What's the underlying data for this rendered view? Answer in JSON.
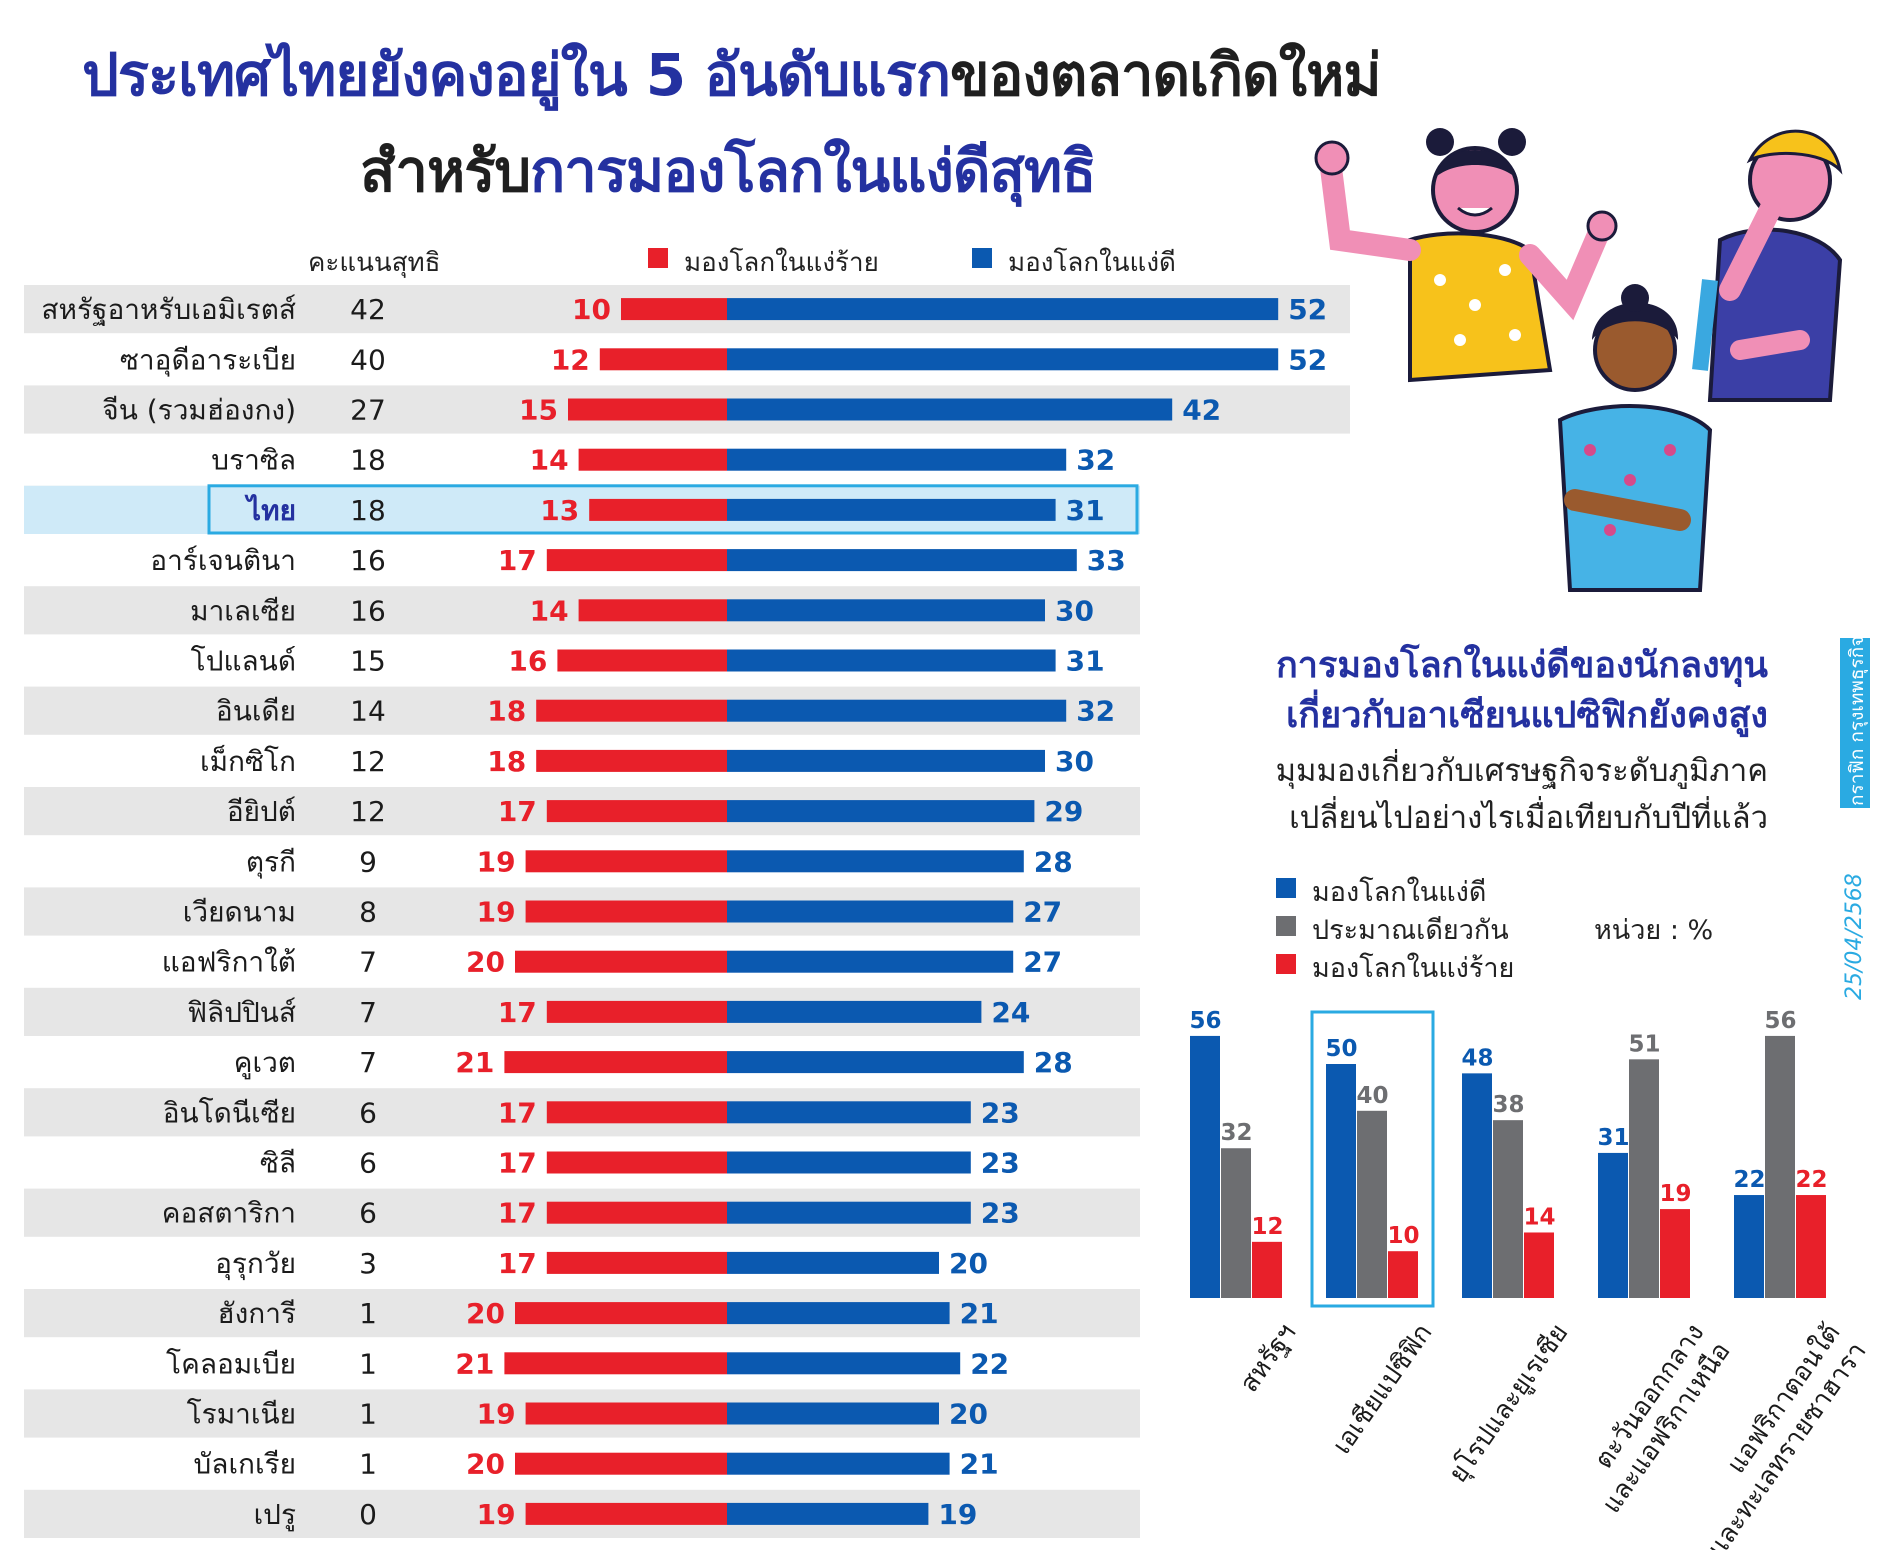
{
  "title": {
    "line1_blue": "ประเทศไทยยังคงอยู่ใน 5 อันดับแรก",
    "line1_dark": "ของตลาดเกิดใหม่",
    "line2_dark": "สำหรับ",
    "line2_blue": "การมองโลกในแง่ดีสุทธิ"
  },
  "chart_data": [
    {
      "type": "bar",
      "orientation": "horizontal-diverging",
      "net_header": "คะแนนสุทธิ",
      "highlight": "ไทย",
      "colors": {
        "pessimistic": "#e8202a",
        "optimistic": "#0b59b0",
        "highlight_border": "#2aaae2"
      },
      "series": [
        {
          "name": "มองโลกในแง่ร้าย"
        },
        {
          "name": "มองโลกในแง่ดี"
        }
      ],
      "rows": [
        {
          "country": "สหรัฐอาหรับเอมิเรตส์",
          "net": 42,
          "pess": 10,
          "opt": 52
        },
        {
          "country": "ซาอุดีอาระเบีย",
          "net": 40,
          "pess": 12,
          "opt": 52
        },
        {
          "country": "จีน (รวมฮ่องกง)",
          "net": 27,
          "pess": 15,
          "opt": 42
        },
        {
          "country": "บราซิล",
          "net": 18,
          "pess": 14,
          "opt": 32
        },
        {
          "country": "ไทย",
          "net": 18,
          "pess": 13,
          "opt": 31
        },
        {
          "country": "อาร์เจนตินา",
          "net": 16,
          "pess": 17,
          "opt": 33
        },
        {
          "country": "มาเลเซีย",
          "net": 16,
          "pess": 14,
          "opt": 30
        },
        {
          "country": "โปแลนด์",
          "net": 15,
          "pess": 16,
          "opt": 31
        },
        {
          "country": "อินเดีย",
          "net": 14,
          "pess": 18,
          "opt": 32
        },
        {
          "country": "เม็กซิโก",
          "net": 12,
          "pess": 18,
          "opt": 30
        },
        {
          "country": "อียิปต์",
          "net": 12,
          "pess": 17,
          "opt": 29
        },
        {
          "country": "ตุรกี",
          "net": 9,
          "pess": 19,
          "opt": 28
        },
        {
          "country": "เวียดนาม",
          "net": 8,
          "pess": 19,
          "opt": 27
        },
        {
          "country": "แอฟริกาใต้",
          "net": 7,
          "pess": 20,
          "opt": 27
        },
        {
          "country": "ฟิลิปปินส์",
          "net": 7,
          "pess": 17,
          "opt": 24
        },
        {
          "country": "คูเวต",
          "net": 7,
          "pess": 21,
          "opt": 28
        },
        {
          "country": "อินโดนีเซีย",
          "net": 6,
          "pess": 17,
          "opt": 23
        },
        {
          "country": "ซิลี",
          "net": 6,
          "pess": 17,
          "opt": 23
        },
        {
          "country": "คอสตาริกา",
          "net": 6,
          "pess": 17,
          "opt": 23
        },
        {
          "country": "อุรุกวัย",
          "net": 3,
          "pess": 17,
          "opt": 20
        },
        {
          "country": "ฮังการี",
          "net": 1,
          "pess": 20,
          "opt": 21
        },
        {
          "country": "โคลอมเบีย",
          "net": 1,
          "pess": 21,
          "opt": 22
        },
        {
          "country": "โรมาเนีย",
          "net": 1,
          "pess": 19,
          "opt": 20
        },
        {
          "country": "บัลเกเรีย",
          "net": 1,
          "pess": 20,
          "opt": 21
        },
        {
          "country": "เปรู",
          "net": 0,
          "pess": 19,
          "opt": 19
        }
      ]
    },
    {
      "type": "bar",
      "title": "การมองโลกในแง่ดีของนักลงทุน",
      "title2": "เกี่ยวกับอาเซียนแปซิฟิกยังคงสูง",
      "subtitle": "มุมมองเกี่ยวกับเศรษฐกิจระดับภูมิภาค",
      "subtitle2": "เปลี่ยนไปอย่างไรเมื่อเทียบกับปีที่แล้ว",
      "unit": "หน่วย : %",
      "highlight": "เอเชียแปซิฟิก",
      "categories": [
        [
          "สหรัฐฯ"
        ],
        [
          "เอเชียแปซิฟิก"
        ],
        [
          "ยุโรปและยูเรเซีย"
        ],
        [
          "ตะวันออกกลาง",
          "และแอฟริกาเหนือ"
        ],
        [
          "แอฟริกาตอนใต้",
          "และทะเลทรายซาฮารา"
        ]
      ],
      "series": [
        {
          "name": "มองโลกในแง่ดี",
          "color": "#0b59b0",
          "values": [
            56,
            50,
            48,
            31,
            22
          ]
        },
        {
          "name": "ประมาณเดียวกัน",
          "color": "#6d6e71",
          "values": [
            32,
            40,
            38,
            51,
            56
          ]
        },
        {
          "name": "มองโลกในแง่ร้าย",
          "color": "#e8202a",
          "values": [
            12,
            10,
            14,
            19,
            22
          ]
        }
      ]
    }
  ],
  "side": {
    "tag": "กราฟิก",
    "brand": "กรุงเทพธุรกิจ",
    "date": "25/04/2568"
  }
}
